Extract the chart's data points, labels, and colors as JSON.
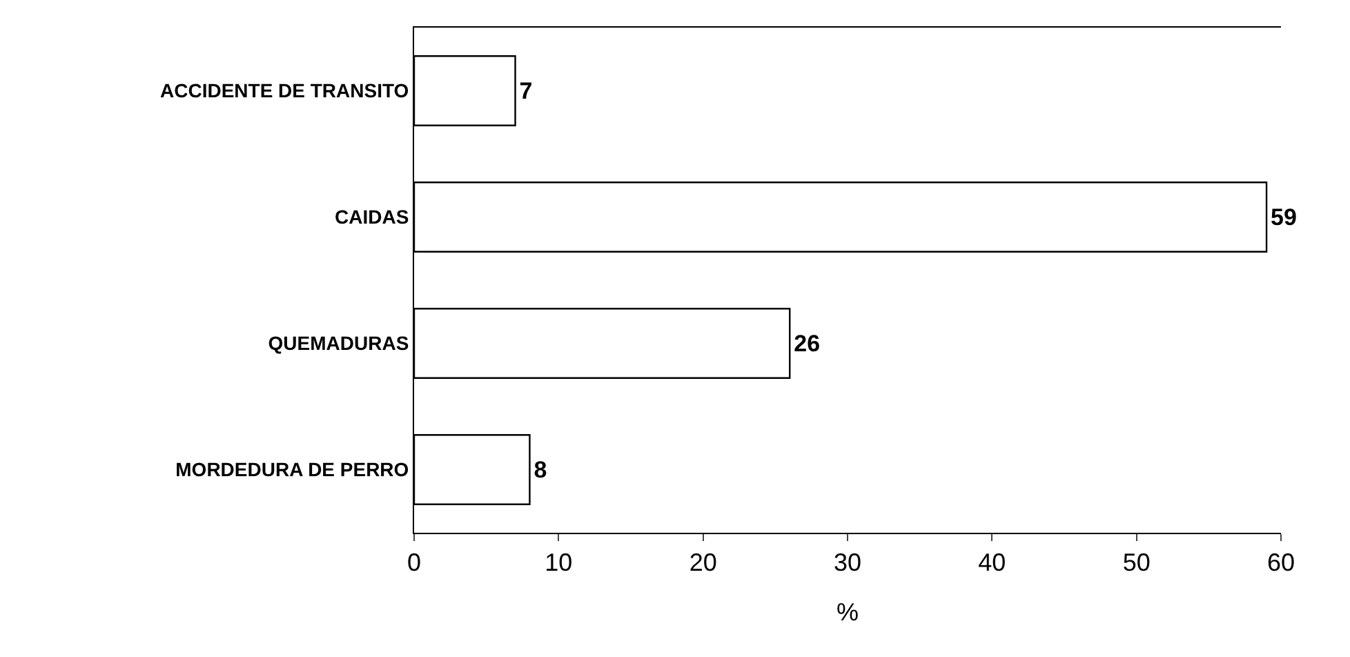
{
  "chart_data": {
    "type": "bar",
    "orientation": "horizontal",
    "categories": [
      "ACCIDENTE DE TRANSITO",
      "CAIDAS",
      "QUEMADURAS",
      "MORDEDURA DE PERRO"
    ],
    "values": [
      7,
      59,
      26,
      8
    ],
    "color": "#ffffff",
    "xlabel": "%",
    "xlim": [
      0,
      60
    ],
    "xticks": [
      0,
      10,
      20,
      30,
      40,
      50,
      60
    ],
    "data_labels": true,
    "grid": false,
    "legend": false
  }
}
